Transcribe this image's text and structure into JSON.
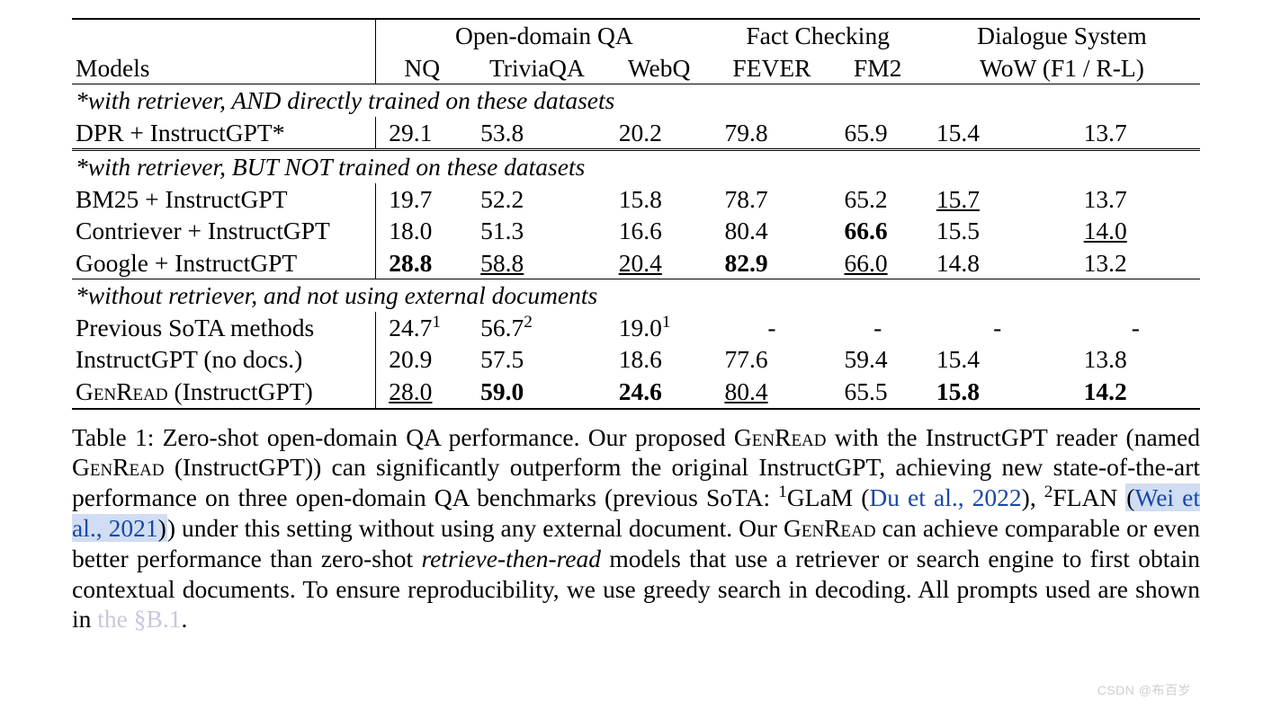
{
  "table": {
    "header": {
      "models_label": "Models",
      "groups": [
        {
          "label": "Open-domain QA",
          "subs": [
            "NQ",
            "TriviaQA",
            "WebQ"
          ]
        },
        {
          "label": "Fact Checking",
          "subs": [
            "FEVER",
            "FM2"
          ]
        },
        {
          "label": "Dialogue System",
          "subs": [
            "WoW (F1 / R-L)"
          ],
          "sub_span": 2
        }
      ]
    },
    "sections": [
      {
        "note": "*with retriever, AND directly trained on these datasets",
        "rows": [
          {
            "name": "DPR + InstructGPT*",
            "cells": [
              {
                "v": "29.1"
              },
              {
                "v": "53.8"
              },
              {
                "v": "20.2"
              },
              {
                "v": "79.8"
              },
              {
                "v": "65.9"
              },
              {
                "v": "15.4"
              },
              {
                "v": "13.7"
              }
            ]
          }
        ],
        "after_rule": "dbl"
      },
      {
        "note": "*with retriever, BUT NOT trained on these datasets",
        "rows": [
          {
            "name": "BM25 + InstructGPT",
            "cells": [
              {
                "v": "19.7"
              },
              {
                "v": "52.2"
              },
              {
                "v": "15.8"
              },
              {
                "v": "78.7"
              },
              {
                "v": "65.2"
              },
              {
                "v": "15.7",
                "u": true
              },
              {
                "v": "13.7"
              }
            ]
          },
          {
            "name": "Contriever + InstructGPT",
            "cells": [
              {
                "v": "18.0"
              },
              {
                "v": "51.3"
              },
              {
                "v": "16.6"
              },
              {
                "v": "80.4"
              },
              {
                "v": "66.6",
                "b": true
              },
              {
                "v": "15.5"
              },
              {
                "v": "14.0",
                "u": true
              }
            ]
          },
          {
            "name": "Google + InstructGPT",
            "cells": [
              {
                "v": "28.8",
                "b": true
              },
              {
                "v": "58.8",
                "u": true
              },
              {
                "v": "20.4",
                "u": true
              },
              {
                "v": "82.9",
                "b": true
              },
              {
                "v": "66.0",
                "u": true
              },
              {
                "v": "14.8"
              },
              {
                "v": "13.2"
              }
            ]
          }
        ],
        "after_rule": "mid"
      },
      {
        "note": "*without retriever, and not using external documents",
        "rows": [
          {
            "name": "Previous SoTA methods",
            "cells": [
              {
                "v": "24.7",
                "sup": "1"
              },
              {
                "v": "56.7",
                "sup": "2"
              },
              {
                "v": "19.0",
                "sup": "1"
              },
              {
                "v": "-",
                "dash": true
              },
              {
                "v": "-",
                "dash": true
              },
              {
                "v": "-",
                "dash": true
              },
              {
                "v": "-",
                "dash": true
              }
            ]
          },
          {
            "name": "InstructGPT (no docs.)",
            "cells": [
              {
                "v": "20.9"
              },
              {
                "v": "57.5"
              },
              {
                "v": "18.6"
              },
              {
                "v": "77.6"
              },
              {
                "v": "59.4"
              },
              {
                "v": "15.4"
              },
              {
                "v": "13.8"
              }
            ]
          },
          {
            "name_html": "G<span class=\"sc\">en</span>R<span class=\"sc\">ead</span> (InstructGPT)",
            "cells": [
              {
                "v": "28.0",
                "u": true
              },
              {
                "v": "59.0",
                "b": true
              },
              {
                "v": "24.6",
                "b": true
              },
              {
                "v": "80.4",
                "u": true
              },
              {
                "v": "65.5"
              },
              {
                "v": "15.8",
                "b": true
              },
              {
                "v": "14.2",
                "b": true
              }
            ]
          }
        ],
        "after_rule": "bot"
      }
    ],
    "col_widths": [
      "330",
      "100",
      "150",
      "115",
      "130",
      "100",
      "160",
      "140"
    ]
  },
  "caption": {
    "label": "Table 1:",
    "text_parts": [
      " Zero-shot open-domain QA performance. Our proposed G",
      {
        "sc": "en"
      },
      "R",
      {
        "sc": "ead"
      },
      " with the InstructGPT reader (named G",
      {
        "sc": "en"
      },
      "R",
      {
        "sc": "ead"
      },
      " (InstructGPT)) can significantly outperform the original InstructGPT, achieving new state-of-the-art performance on three open-domain QA benchmarks (previous SoTA: ",
      {
        "sup": "1"
      },
      "GLaM (",
      {
        "link": "Du et al., 2022"
      },
      "), ",
      {
        "sup": "2"
      },
      "FLAN ",
      {
        "hl_open": true
      },
      "(",
      {
        "link": "Wei et al., 2021"
      },
      ")",
      {
        "hl_close": true
      },
      ") under this setting without using any external document.  Our G",
      {
        "sc": "en"
      },
      "R",
      {
        "sc": "ead"
      },
      " can achieve comparable or even better performance than zero-shot ",
      {
        "it": "retrieve-then-read"
      },
      " models that use a retriever or search engine to first obtain contextual documents. To ensure reproducibility, we use greedy search in decoding. All prompts used are shown in ",
      {
        "faint_link": "the §B.1"
      },
      "."
    ]
  },
  "watermark": "CSDN @布百岁"
}
